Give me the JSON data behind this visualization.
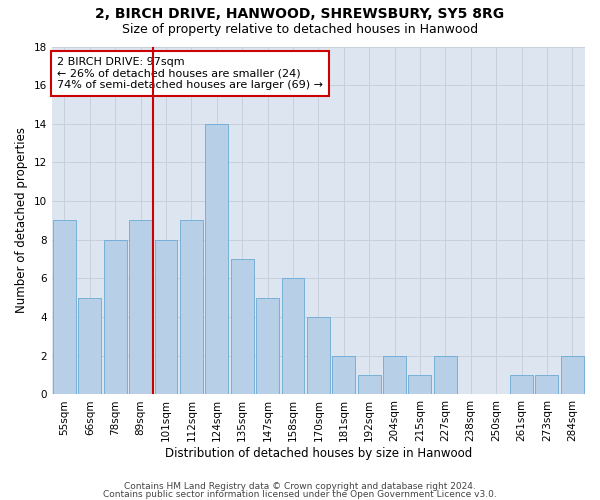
{
  "title1": "2, BIRCH DRIVE, HANWOOD, SHREWSBURY, SY5 8RG",
  "title2": "Size of property relative to detached houses in Hanwood",
  "xlabel": "Distribution of detached houses by size in Hanwood",
  "ylabel": "Number of detached properties",
  "categories": [
    "55sqm",
    "66sqm",
    "78sqm",
    "89sqm",
    "101sqm",
    "112sqm",
    "124sqm",
    "135sqm",
    "147sqm",
    "158sqm",
    "170sqm",
    "181sqm",
    "192sqm",
    "204sqm",
    "215sqm",
    "227sqm",
    "238sqm",
    "250sqm",
    "261sqm",
    "273sqm",
    "284sqm"
  ],
  "values": [
    9,
    5,
    8,
    9,
    8,
    9,
    14,
    7,
    5,
    6,
    4,
    2,
    1,
    2,
    1,
    2,
    0,
    0,
    1,
    1,
    2
  ],
  "bar_color": "#b8cfe8",
  "bar_edgecolor": "#6aaad4",
  "vline_color": "#cc0000",
  "annotation_text": "2 BIRCH DRIVE: 97sqm\n← 26% of detached houses are smaller (24)\n74% of semi-detached houses are larger (69) →",
  "annotation_box_color": "#ffffff",
  "annotation_box_edgecolor": "#cc0000",
  "ylim": [
    0,
    18
  ],
  "yticks": [
    0,
    2,
    4,
    6,
    8,
    10,
    12,
    14,
    16,
    18
  ],
  "grid_color": "#c8d0dc",
  "bg_color": "#dde6f0",
  "footer1": "Contains HM Land Registry data © Crown copyright and database right 2024.",
  "footer2": "Contains public sector information licensed under the Open Government Licence v3.0.",
  "title1_fontsize": 10,
  "title2_fontsize": 9,
  "axis_fontsize": 8.5,
  "tick_fontsize": 7.5,
  "annot_fontsize": 8,
  "footer_fontsize": 6.5
}
